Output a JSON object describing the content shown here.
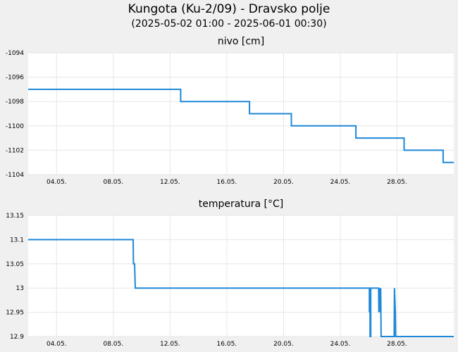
{
  "header": {
    "title": "Kungota (Ku-2/09) - Dravsko polje",
    "subtitle": "(2025-05-02 01:00 - 2025-06-01 00:30)"
  },
  "colors": {
    "line": "#1e88d8",
    "grid": "#e6e6e6",
    "plot_bg": "#ffffff",
    "page_bg": "#f0f0f0"
  },
  "chart_data": [
    {
      "type": "line",
      "title": "nivo [cm]",
      "x_ticks": [
        "04.05.",
        "08.05.",
        "12.05.",
        "16.05.",
        "20.05.",
        "24.05.",
        "28.05."
      ],
      "x_tick_days": [
        2,
        6,
        10,
        14,
        18,
        22,
        26
      ],
      "xlim_days": [
        0,
        30
      ],
      "y_ticks": [
        "-1094",
        "-1096",
        "-1098",
        "-1100",
        "-1102",
        "-1104"
      ],
      "ylim": [
        -1104,
        -1094
      ],
      "grid": true,
      "series": [
        {
          "x_days": [
            0,
            10.75,
            10.75,
            15.6,
            15.6,
            18.55,
            18.55,
            23.1,
            23.1,
            26.5,
            26.5,
            29.25,
            29.25,
            30
          ],
          "values": [
            -1097,
            -1097,
            -1098,
            -1098,
            -1099,
            -1099,
            -1100,
            -1100,
            -1101,
            -1101,
            -1102,
            -1102,
            -1103,
            -1103
          ]
        }
      ]
    },
    {
      "type": "line",
      "title": "temperatura [°C]",
      "x_ticks": [
        "04.05.",
        "08.05.",
        "12.05.",
        "16.05.",
        "20.05.",
        "24.05.",
        "28.05."
      ],
      "x_tick_days": [
        2,
        6,
        10,
        14,
        18,
        22,
        26
      ],
      "xlim_days": [
        0,
        30
      ],
      "y_ticks": [
        "13.15",
        "13.1",
        "13.05",
        "13",
        "12.95",
        "12.9"
      ],
      "ylim": [
        12.9,
        13.15
      ],
      "grid": true,
      "series": [
        {
          "x_days": [
            0,
            7.4,
            7.42,
            7.5,
            7.55,
            7.58,
            24.05,
            24.05,
            24.1,
            24.1,
            24.15,
            24.15,
            24.7,
            24.72,
            24.78,
            24.8,
            24.85,
            24.88,
            24.92,
            24.95,
            25.8,
            25.82,
            25.88,
            25.9,
            25.95,
            30
          ],
          "values": [
            13.1,
            13.1,
            13.05,
            13.05,
            13.0,
            13.0,
            13.0,
            12.95,
            13.0,
            12.9,
            12.9,
            13.0,
            13.0,
            12.95,
            13.0,
            12.95,
            13.0,
            12.9,
            12.9,
            12.9,
            12.9,
            13.0,
            12.95,
            12.9,
            12.9,
            12.9
          ]
        }
      ]
    }
  ]
}
